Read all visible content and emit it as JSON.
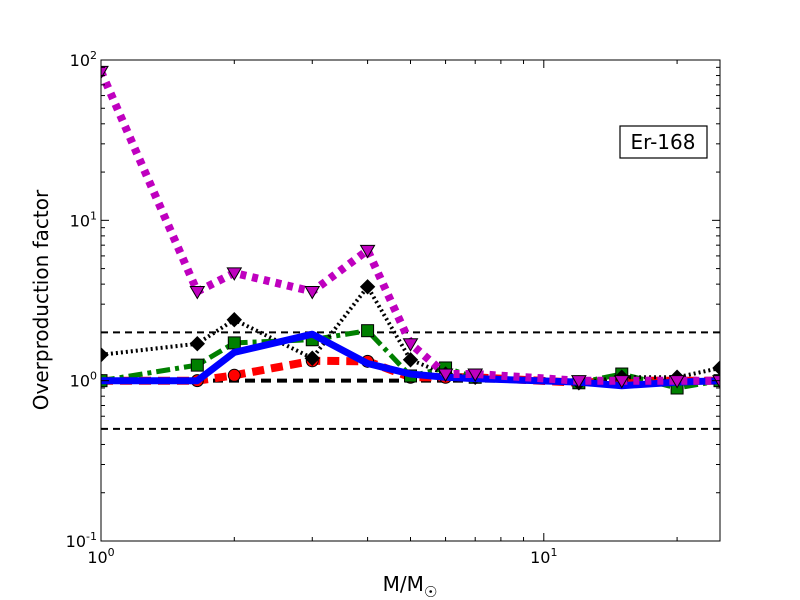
{
  "chart_data": {
    "type": "line",
    "xscale": "log",
    "yscale": "log",
    "xlim": [
      1,
      25
    ],
    "ylim": [
      0.1,
      100
    ],
    "xlabel": "M/M☉",
    "xlabel_base": "M/M",
    "xlabel_sub": "☉",
    "ylabel": "Overproduction factor",
    "x_ticks": [
      {
        "value": 1,
        "base": "10",
        "exp": "0"
      },
      {
        "value": 10,
        "base": "10",
        "exp": "1"
      }
    ],
    "y_ticks": [
      {
        "value": 0.1,
        "base": "10",
        "exp": "-1"
      },
      {
        "value": 1,
        "base": "10",
        "exp": "0"
      },
      {
        "value": 10,
        "base": "10",
        "exp": "1"
      },
      {
        "value": 100,
        "base": "10",
        "exp": "2"
      }
    ],
    "annotation": "Er-168",
    "annotation_position": "top-right",
    "reference_lines": [
      {
        "y": 2.0,
        "color": "#000000",
        "style": "dashed",
        "width": 2
      },
      {
        "y": 1.0,
        "color": "#000000",
        "style": "dashed",
        "width": 4
      },
      {
        "y": 0.5,
        "color": "#000000",
        "style": "dashed",
        "width": 2
      }
    ],
    "series": [
      {
        "color": "#ff0000",
        "dash": "12,7",
        "width": 8,
        "marker": "circle",
        "x": [
          1,
          1.65,
          2,
          3,
          4,
          5,
          6,
          7,
          12,
          15,
          20,
          25
        ],
        "y": [
          1.0,
          1.0,
          1.08,
          1.33,
          1.32,
          1.05,
          1.05,
          1.05,
          0.97,
          1.0,
          1.0,
          1.0
        ]
      },
      {
        "color": "#008000",
        "dash": "14,5,4,5",
        "width": 5,
        "marker": "square",
        "x": [
          1,
          1.65,
          2,
          3,
          4,
          5,
          6,
          7,
          12,
          15,
          20,
          25
        ],
        "y": [
          1.0,
          1.25,
          1.72,
          1.8,
          2.05,
          1.07,
          1.2,
          1.05,
          0.97,
          1.1,
          0.9,
          1.0
        ]
      },
      {
        "color": "#000000",
        "dash": "2,3",
        "width": 4,
        "marker": "diamond",
        "x": [
          1,
          1.65,
          2,
          3,
          4,
          5,
          6,
          7,
          12,
          15,
          20,
          25
        ],
        "y": [
          1.45,
          1.7,
          2.4,
          1.38,
          3.85,
          1.35,
          1.1,
          1.05,
          0.97,
          1.05,
          1.05,
          1.2
        ]
      },
      {
        "color": "#0000ff",
        "dash": "",
        "width": 7,
        "marker": "none",
        "x": [
          1,
          1.65,
          2,
          3,
          4,
          5,
          6,
          7,
          12,
          15,
          20,
          25
        ],
        "y": [
          1.0,
          1.0,
          1.5,
          1.95,
          1.28,
          1.1,
          1.05,
          1.03,
          0.98,
          0.93,
          0.98,
          1.0
        ]
      },
      {
        "color": "#bf00bf",
        "dash": "6,6",
        "width": 8,
        "marker": "triangle-down",
        "x": [
          1,
          1.65,
          2,
          3,
          4,
          5,
          6,
          7,
          12,
          15,
          20,
          25
        ],
        "y": [
          85,
          3.6,
          4.7,
          3.6,
          6.5,
          1.7,
          1.1,
          1.1,
          1.0,
          1.0,
          1.0,
          1.0
        ]
      }
    ]
  }
}
